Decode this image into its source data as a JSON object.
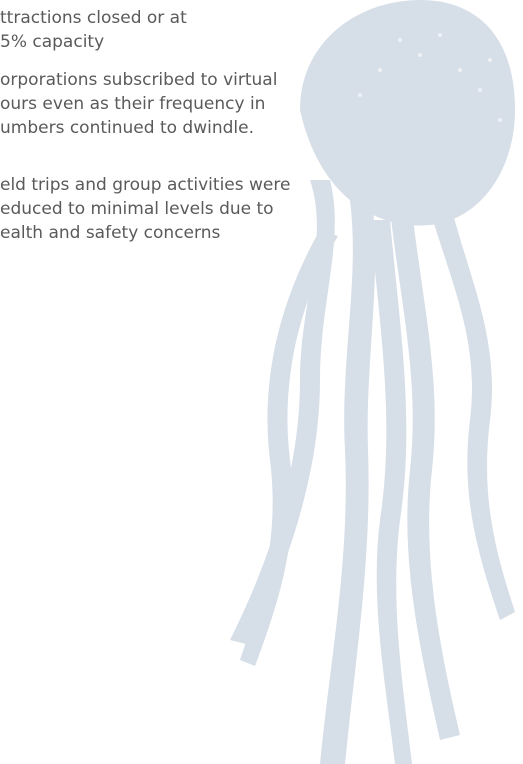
{
  "paragraphs": [
    {
      "lines": [
        "ttractions closed or at",
        "5% capacity"
      ]
    },
    {
      "lines": [
        "orporations subscribed to virtual",
        "ours even as their frequency in",
        "umbers continued to dwindle."
      ]
    },
    {
      "lines": [
        "eld trips and group activities were",
        "educed to minimal levels due to",
        "ealth and safety concerns"
      ]
    }
  ]
}
